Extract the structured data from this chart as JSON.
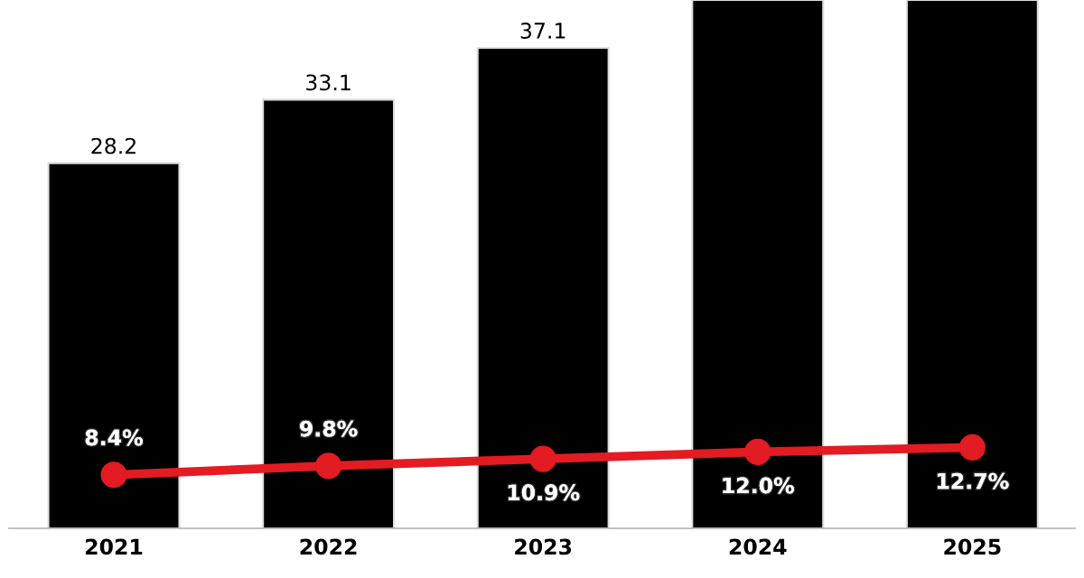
{
  "chart_data": {
    "type": "bar",
    "categories": [
      "2021",
      "2022",
      "2023",
      "2024",
      "2025"
    ],
    "ylim": [
      0,
      40.8
    ],
    "y2lim": [
      0,
      83
    ],
    "grid": false,
    "legend": false,
    "tick_labels": "x",
    "series": [
      {
        "color": "#000000",
        "values": [
          28.2,
          33.1,
          37.1,
          40.8,
          40.8
        ],
        "value_labels": [
          "28.2",
          "33.1",
          "37.1",
          null,
          null
        ]
      },
      {
        "type": "line",
        "axis": "y2",
        "color": "#e31b23",
        "marker": "circle",
        "line_style": "solid",
        "values": [
          8.4,
          9.8,
          10.9,
          12.0,
          12.7
        ],
        "value_labels": [
          "8.4%",
          "9.8%",
          "10.9%",
          "12.0%",
          "12.7%"
        ]
      }
    ]
  }
}
